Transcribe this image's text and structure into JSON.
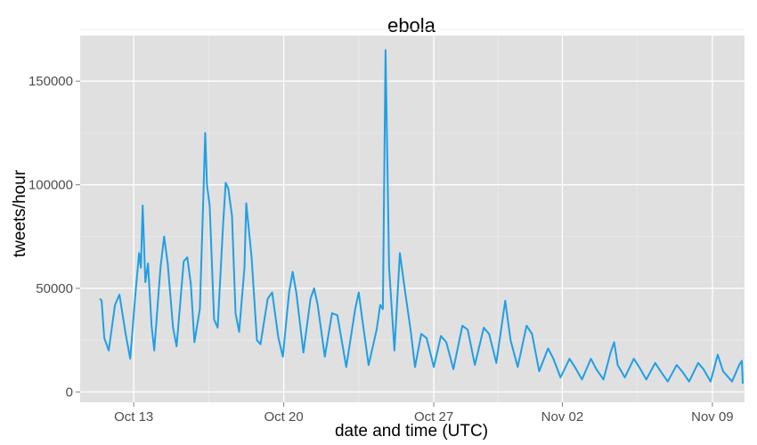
{
  "chart_data": {
    "type": "line",
    "title": "ebola",
    "xlabel": "date and time (UTC)",
    "ylabel": "tweets/hour",
    "ylim": [
      -5000,
      172000
    ],
    "xlim": [
      "2014-10-10T12:00",
      "2014-11-10T12:00"
    ],
    "grid": true,
    "x_ticks": [
      {
        "label": "Oct 13",
        "date": "2014-10-13"
      },
      {
        "label": "Oct 20",
        "date": "2014-10-20"
      },
      {
        "label": "Oct 27",
        "date": "2014-10-27"
      },
      {
        "label": "Nov 02",
        "date": "2014-11-02"
      },
      {
        "label": "Nov 09",
        "date": "2014-11-09"
      }
    ],
    "y_ticks": [
      0,
      50000,
      100000,
      150000
    ],
    "y_tick_labels": [
      "0",
      "50000",
      "100000",
      "150000"
    ],
    "series": [
      {
        "color": "#1f9fe5",
        "points": [
          [
            "2014-10-11T10:00",
            45000
          ],
          [
            "2014-10-11T12:00",
            44000
          ],
          [
            "2014-10-11T15:00",
            26000
          ],
          [
            "2014-10-11T20:00",
            20000
          ],
          [
            "2014-10-12T03:00",
            42000
          ],
          [
            "2014-10-12T08:00",
            47000
          ],
          [
            "2014-10-12T15:00",
            28000
          ],
          [
            "2014-10-12T20:00",
            16000
          ],
          [
            "2014-10-13T02:00",
            48000
          ],
          [
            "2014-10-13T06:00",
            67000
          ],
          [
            "2014-10-13T08:00",
            60000
          ],
          [
            "2014-10-13T10:00",
            90000
          ],
          [
            "2014-10-13T13:00",
            53000
          ],
          [
            "2014-10-13T16:00",
            62000
          ],
          [
            "2014-10-13T20:00",
            32000
          ],
          [
            "2014-10-13T23:00",
            20000
          ],
          [
            "2014-10-14T06:00",
            60000
          ],
          [
            "2014-10-14T10:00",
            75000
          ],
          [
            "2014-10-14T14:00",
            62000
          ],
          [
            "2014-10-14T20:00",
            31000
          ],
          [
            "2014-10-15T00:00",
            22000
          ],
          [
            "2014-10-15T08:00",
            63000
          ],
          [
            "2014-10-15T12:00",
            65000
          ],
          [
            "2014-10-15T16:00",
            52000
          ],
          [
            "2014-10-15T20:00",
            24000
          ],
          [
            "2014-10-16T02:00",
            40000
          ],
          [
            "2014-10-16T06:00",
            95000
          ],
          [
            "2014-10-16T08:00",
            125000
          ],
          [
            "2014-10-16T10:00",
            100000
          ],
          [
            "2014-10-16T13:00",
            90000
          ],
          [
            "2014-10-16T18:00",
            35000
          ],
          [
            "2014-10-16T22:00",
            31000
          ],
          [
            "2014-10-17T04:00",
            80000
          ],
          [
            "2014-10-17T07:00",
            101000
          ],
          [
            "2014-10-17T10:00",
            98000
          ],
          [
            "2014-10-17T14:00",
            85000
          ],
          [
            "2014-10-17T18:00",
            38000
          ],
          [
            "2014-10-17T22:00",
            29000
          ],
          [
            "2014-10-18T04:00",
            60000
          ],
          [
            "2014-10-18T06:00",
            91000
          ],
          [
            "2014-10-18T12:00",
            65000
          ],
          [
            "2014-10-18T18:00",
            25000
          ],
          [
            "2014-10-18T22:00",
            23000
          ],
          [
            "2014-10-19T06:00",
            45000
          ],
          [
            "2014-10-19T11:00",
            48000
          ],
          [
            "2014-10-19T18:00",
            26000
          ],
          [
            "2014-10-19T23:00",
            17000
          ],
          [
            "2014-10-20T06:00",
            48000
          ],
          [
            "2014-10-20T10:00",
            58000
          ],
          [
            "2014-10-20T14:00",
            48000
          ],
          [
            "2014-10-20T22:00",
            19000
          ],
          [
            "2014-10-21T06:00",
            45000
          ],
          [
            "2014-10-21T10:00",
            50000
          ],
          [
            "2014-10-21T14:00",
            42000
          ],
          [
            "2014-10-21T22:00",
            17000
          ],
          [
            "2014-10-22T06:00",
            38000
          ],
          [
            "2014-10-22T12:00",
            37000
          ],
          [
            "2014-10-22T22:00",
            12000
          ],
          [
            "2014-10-23T08:00",
            40000
          ],
          [
            "2014-10-23T12:00",
            48000
          ],
          [
            "2014-10-23T16:00",
            35000
          ],
          [
            "2014-10-23T23:00",
            13000
          ],
          [
            "2014-10-24T08:00",
            30000
          ],
          [
            "2014-10-24T12:00",
            42000
          ],
          [
            "2014-10-24T15:00",
            40000
          ],
          [
            "2014-10-24T18:00",
            165000
          ],
          [
            "2014-10-24T22:00",
            60000
          ],
          [
            "2014-10-25T04:00",
            20000
          ],
          [
            "2014-10-25T10:00",
            67000
          ],
          [
            "2014-10-25T16:00",
            48000
          ],
          [
            "2014-10-25T22:00",
            30000
          ],
          [
            "2014-10-26T03:00",
            12000
          ],
          [
            "2014-10-26T10:00",
            28000
          ],
          [
            "2014-10-26T16:00",
            26000
          ],
          [
            "2014-10-27T00:00",
            12000
          ],
          [
            "2014-10-27T08:00",
            27000
          ],
          [
            "2014-10-27T14:00",
            24000
          ],
          [
            "2014-10-27T22:00",
            11000
          ],
          [
            "2014-10-28T08:00",
            32000
          ],
          [
            "2014-10-28T14:00",
            30000
          ],
          [
            "2014-10-28T22:00",
            13000
          ],
          [
            "2014-10-29T08:00",
            31000
          ],
          [
            "2014-10-29T14:00",
            28000
          ],
          [
            "2014-10-29T22:00",
            14000
          ],
          [
            "2014-10-30T08:00",
            44000
          ],
          [
            "2014-10-30T14:00",
            25000
          ],
          [
            "2014-10-30T22:00",
            12000
          ],
          [
            "2014-10-31T08:00",
            32000
          ],
          [
            "2014-10-31T14:00",
            28000
          ],
          [
            "2014-10-31T22:00",
            10000
          ],
          [
            "2014-11-01T08:00",
            21000
          ],
          [
            "2014-11-01T14:00",
            16000
          ],
          [
            "2014-11-01T22:00",
            7000
          ],
          [
            "2014-11-02T08:00",
            16000
          ],
          [
            "2014-11-02T14:00",
            12000
          ],
          [
            "2014-11-02T22:00",
            6000
          ],
          [
            "2014-11-03T08:00",
            16000
          ],
          [
            "2014-11-03T14:00",
            11000
          ],
          [
            "2014-11-03T22:00",
            6000
          ],
          [
            "2014-11-04T06:00",
            19000
          ],
          [
            "2014-11-04T10:00",
            24000
          ],
          [
            "2014-11-04T14:00",
            13000
          ],
          [
            "2014-11-04T22:00",
            7000
          ],
          [
            "2014-11-05T08:00",
            16000
          ],
          [
            "2014-11-05T14:00",
            12000
          ],
          [
            "2014-11-05T22:00",
            6000
          ],
          [
            "2014-11-06T08:00",
            14000
          ],
          [
            "2014-11-06T14:00",
            10000
          ],
          [
            "2014-11-06T22:00",
            5000
          ],
          [
            "2014-11-07T08:00",
            13000
          ],
          [
            "2014-11-07T14:00",
            10000
          ],
          [
            "2014-11-07T22:00",
            5000
          ],
          [
            "2014-11-08T08:00",
            14000
          ],
          [
            "2014-11-08T14:00",
            11000
          ],
          [
            "2014-11-08T22:00",
            5000
          ],
          [
            "2014-11-09T06:00",
            18000
          ],
          [
            "2014-11-09T12:00",
            10000
          ],
          [
            "2014-11-09T22:00",
            5000
          ],
          [
            "2014-11-10T06:00",
            13000
          ],
          [
            "2014-11-10T09:00",
            15000
          ],
          [
            "2014-11-10T10:00",
            4000
          ]
        ]
      }
    ]
  }
}
